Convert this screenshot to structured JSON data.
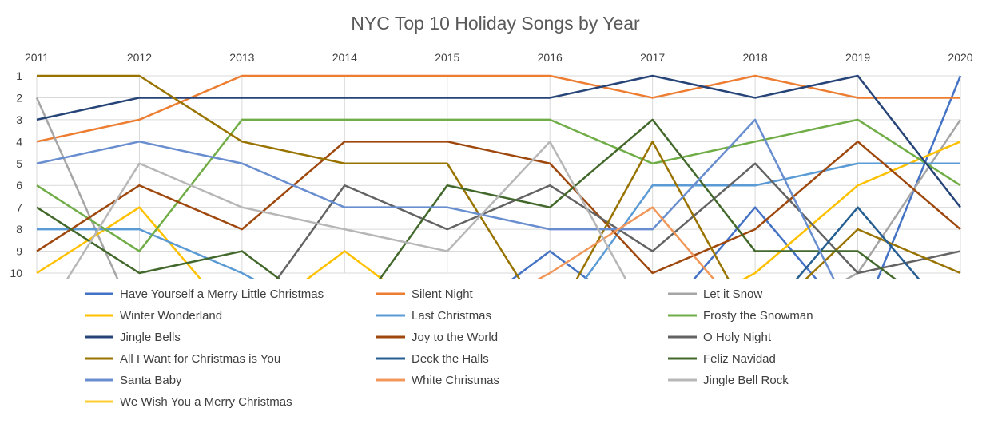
{
  "chart_data": {
    "type": "line",
    "title": "NYC Top 10 Holiday Songs by Year",
    "xlabel": "",
    "ylabel": "",
    "x": [
      "2011",
      "2012",
      "2013",
      "2014",
      "2015",
      "2016",
      "2017",
      "2018",
      "2019",
      "2020"
    ],
    "yticks": [
      "1",
      "2",
      "3",
      "4",
      "5",
      "6",
      "7",
      "8",
      "9",
      "10"
    ],
    "ylim": [
      1,
      10
    ],
    "y_reversed": true,
    "x_axis_position": "top",
    "grid": true,
    "legend_position": "bottom",
    "series": [
      {
        "name": "Have Yourself a Merry Little Christmas",
        "color": "#4472C4",
        "values": [
          null,
          null,
          null,
          null,
          null,
          9,
          null,
          7,
          null,
          1
        ]
      },
      {
        "name": "Silent Night",
        "color": "#ED7D31",
        "values": [
          4,
          3,
          1,
          1,
          1,
          1,
          2,
          1,
          2,
          2
        ]
      },
      {
        "name": "Let it Snow",
        "color": "#A5A5A5",
        "values": [
          2,
          null,
          null,
          null,
          null,
          null,
          null,
          null,
          10,
          3
        ]
      },
      {
        "name": "Winter Wonderland",
        "color": "#FFC000",
        "values": [
          10,
          7,
          null,
          9,
          null,
          null,
          null,
          10,
          6,
          4
        ]
      },
      {
        "name": "Last Christmas",
        "color": "#5B9BD5",
        "values": [
          8,
          8,
          10,
          null,
          null,
          null,
          6,
          6,
          5,
          5
        ]
      },
      {
        "name": "Frosty the Snowman",
        "color": "#70AD47",
        "values": [
          6,
          9,
          3,
          3,
          3,
          3,
          5,
          4,
          3,
          6
        ]
      },
      {
        "name": "Jingle Bells",
        "color": "#264478",
        "values": [
          3,
          2,
          2,
          2,
          2,
          2,
          1,
          2,
          1,
          7
        ]
      },
      {
        "name": "Joy to the World",
        "color": "#9E480E",
        "values": [
          9,
          6,
          8,
          4,
          4,
          5,
          10,
          8,
          4,
          8
        ]
      },
      {
        "name": "O Holy Night",
        "color": "#636363",
        "values": [
          null,
          null,
          null,
          6,
          8,
          6,
          9,
          5,
          10,
          9
        ]
      },
      {
        "name": "All I Want for Christmas is You",
        "color": "#997300",
        "values": [
          1,
          1,
          4,
          5,
          5,
          null,
          4,
          null,
          8,
          10
        ]
      },
      {
        "name": "Deck the Halls",
        "color": "#255E91",
        "values": [
          null,
          null,
          null,
          null,
          null,
          null,
          null,
          null,
          7,
          null
        ]
      },
      {
        "name": "Feliz Navidad",
        "color": "#43682B",
        "values": [
          7,
          10,
          9,
          null,
          6,
          7,
          3,
          9,
          9,
          null
        ]
      },
      {
        "name": "Santa Baby",
        "color": "#698ED0",
        "values": [
          5,
          4,
          5,
          7,
          7,
          8,
          8,
          3,
          null,
          null
        ]
      },
      {
        "name": "White Christmas",
        "color": "#F1975A",
        "values": [
          null,
          null,
          null,
          null,
          null,
          10,
          7,
          null,
          null,
          null
        ]
      },
      {
        "name": "Jingle Bell Rock",
        "color": "#B7B7B7",
        "values": [
          null,
          5,
          7,
          8,
          9,
          4,
          null,
          null,
          null,
          null
        ]
      },
      {
        "name": "We Wish You a Merry Christmas",
        "color": "#FFCD33",
        "values": [
          null,
          null,
          null,
          null,
          null,
          null,
          null,
          null,
          null,
          null
        ]
      }
    ]
  }
}
